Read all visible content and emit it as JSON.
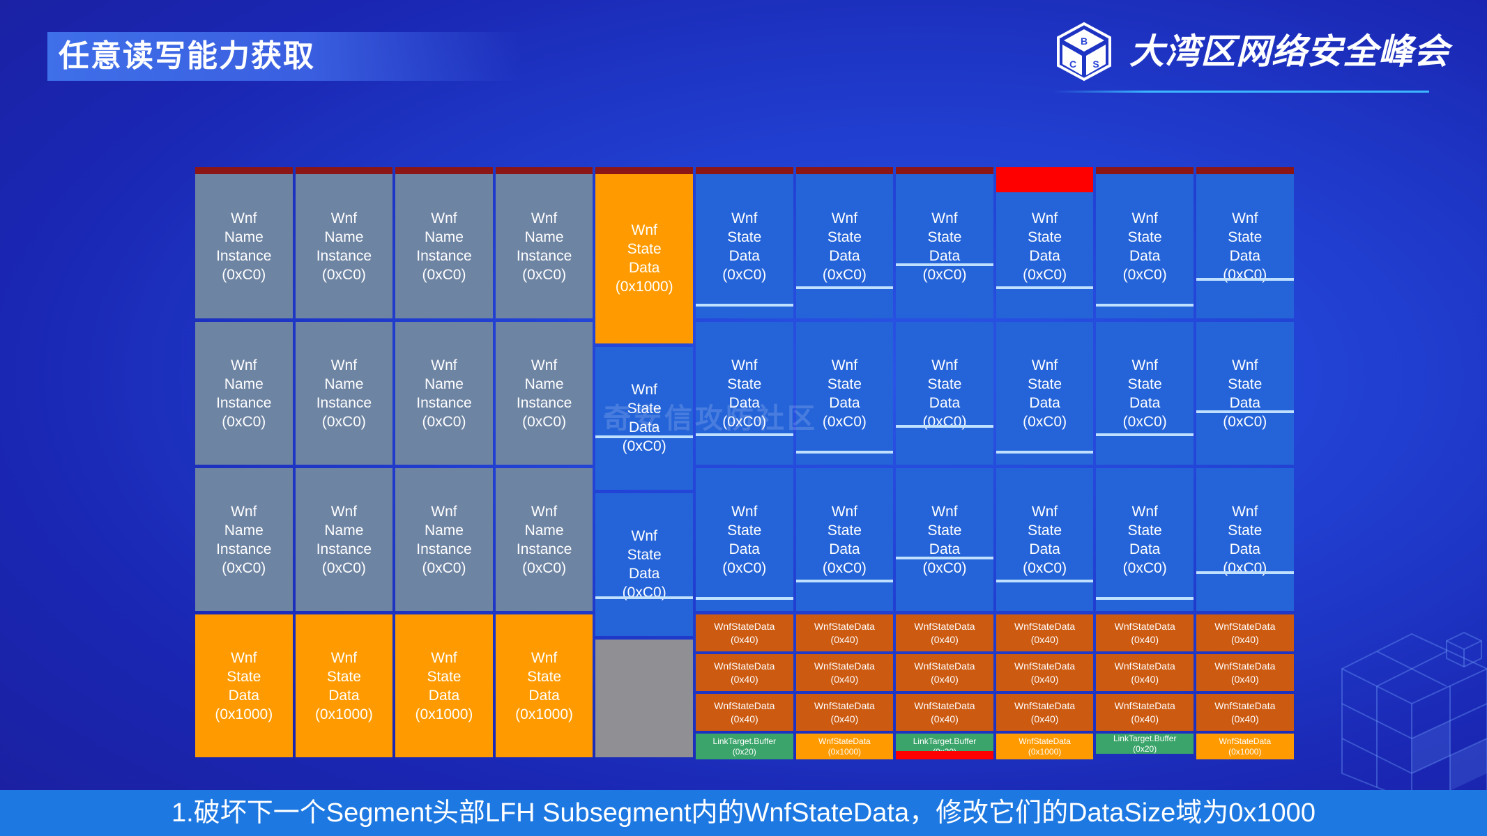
{
  "header": {
    "title": "任意读写能力获取",
    "brand": "大湾区网络安全峰会",
    "logo_letters": [
      "B",
      "C",
      "S"
    ]
  },
  "watermark": "奇安信攻防社区",
  "diagram": {
    "columns": 11,
    "cells": [
      {
        "col": 0,
        "r0": 0,
        "r1": 1,
        "kind": "grey",
        "label": "Wnf\nName\nInstance\n(0xC0)"
      },
      {
        "col": 0,
        "r0": 1,
        "r1": 2,
        "kind": "grey",
        "label": "Wnf\nName\nInstance\n(0xC0)"
      },
      {
        "col": 0,
        "r0": 2,
        "r1": 3,
        "kind": "grey",
        "label": "Wnf\nName\nInstance\n(0xC0)"
      },
      {
        "col": 0,
        "r0": 3,
        "r1": 4,
        "kind": "orange",
        "label": "Wnf\nState\nData\n(0x1000)"
      },
      {
        "col": 1,
        "r0": 0,
        "r1": 1,
        "kind": "grey",
        "label": "Wnf\nName\nInstance\n(0xC0)"
      },
      {
        "col": 1,
        "r0": 1,
        "r1": 2,
        "kind": "grey",
        "label": "Wnf\nName\nInstance\n(0xC0)"
      },
      {
        "col": 1,
        "r0": 2,
        "r1": 3,
        "kind": "grey",
        "label": "Wnf\nName\nInstance\n(0xC0)"
      },
      {
        "col": 1,
        "r0": 3,
        "r1": 4,
        "kind": "orange",
        "label": "Wnf\nState\nData\n(0x1000)"
      },
      {
        "col": 2,
        "r0": 0,
        "r1": 1,
        "kind": "grey",
        "label": "Wnf\nName\nInstance\n(0xC0)"
      },
      {
        "col": 2,
        "r0": 1,
        "r1": 2,
        "kind": "grey",
        "label": "Wnf\nName\nInstance\n(0xC0)"
      },
      {
        "col": 2,
        "r0": 2,
        "r1": 3,
        "kind": "grey",
        "label": "Wnf\nName\nInstance\n(0xC0)"
      },
      {
        "col": 2,
        "r0": 3,
        "r1": 4,
        "kind": "orange",
        "label": "Wnf\nState\nData\n(0x1000)"
      },
      {
        "col": 3,
        "r0": 0,
        "r1": 1,
        "kind": "grey",
        "label": "Wnf\nName\nInstance\n(0xC0)"
      },
      {
        "col": 3,
        "r0": 1,
        "r1": 2,
        "kind": "grey",
        "label": "Wnf\nName\nInstance\n(0xC0)"
      },
      {
        "col": 3,
        "r0": 2,
        "r1": 3,
        "kind": "grey",
        "label": "Wnf\nName\nInstance\n(0xC0)"
      },
      {
        "col": 3,
        "r0": 3,
        "r1": 4,
        "kind": "orange",
        "label": "Wnf\nState\nData\n(0x1000)"
      },
      {
        "col": 4,
        "r0": 0,
        "r1": 1.17,
        "kind": "orange",
        "label": "Wnf\nState\nData\n(0x1000)"
      },
      {
        "col": 4,
        "r0": 1.17,
        "r1": 2.17,
        "kind": "blue",
        "label": "Wnf\nState\nData\n(0xC0)"
      },
      {
        "col": 4,
        "r0": 2.17,
        "r1": 3.17,
        "kind": "blue",
        "label": "Wnf\nState\nData\n(0xC0)"
      },
      {
        "col": 4,
        "r0": 3.17,
        "r1": 4,
        "kind": "grey-light",
        "label": ""
      },
      {
        "col": 5,
        "r0": 0,
        "r1": 1,
        "kind": "blue",
        "label": "Wnf\nState\nData\n(0xC0)"
      },
      {
        "col": 5,
        "r0": 1,
        "r1": 2,
        "kind": "blue",
        "label": "Wnf\nState\nData\n(0xC0)"
      },
      {
        "col": 5,
        "r0": 2,
        "r1": 3,
        "kind": "blue",
        "label": "Wnf\nState\nData\n(0xC0)"
      },
      {
        "col": 6,
        "r0": 0,
        "r1": 1,
        "kind": "blue",
        "label": "Wnf\nState\nData\n(0xC0)"
      },
      {
        "col": 6,
        "r0": 1,
        "r1": 2,
        "kind": "blue",
        "label": "Wnf\nState\nData\n(0xC0)"
      },
      {
        "col": 6,
        "r0": 2,
        "r1": 3,
        "kind": "blue",
        "label": "Wnf\nState\nData\n(0xC0)"
      },
      {
        "col": 7,
        "r0": 0,
        "r1": 1,
        "kind": "blue",
        "label": "Wnf\nState\nData\n(0xC0)"
      },
      {
        "col": 7,
        "r0": 1,
        "r1": 2,
        "kind": "blue",
        "label": "Wnf\nState\nData\n(0xC0)"
      },
      {
        "col": 7,
        "r0": 2,
        "r1": 3,
        "kind": "blue",
        "label": "Wnf\nState\nData\n(0xC0)"
      },
      {
        "col": 8,
        "r0": 0,
        "r1": 1,
        "kind": "blue",
        "label": "Wnf\nState\nData\n(0xC0)",
        "redtop": true
      },
      {
        "col": 8,
        "r0": 1,
        "r1": 2,
        "kind": "blue",
        "label": "Wnf\nState\nData\n(0xC0)"
      },
      {
        "col": 8,
        "r0": 2,
        "r1": 3,
        "kind": "blue",
        "label": "Wnf\nState\nData\n(0xC0)"
      },
      {
        "col": 9,
        "r0": 0,
        "r1": 1,
        "kind": "blue",
        "label": "Wnf\nState\nData\n(0xC0)"
      },
      {
        "col": 9,
        "r0": 1,
        "r1": 2,
        "kind": "blue",
        "label": "Wnf\nState\nData\n(0xC0)"
      },
      {
        "col": 9,
        "r0": 2,
        "r1": 3,
        "kind": "blue",
        "label": "Wnf\nState\nData\n(0xC0)"
      },
      {
        "col": 10,
        "r0": 0,
        "r1": 1,
        "kind": "blue",
        "label": "Wnf\nState\nData\n(0xC0)"
      },
      {
        "col": 10,
        "r0": 1,
        "r1": 2,
        "kind": "blue",
        "label": "Wnf\nState\nData\n(0xC0)"
      },
      {
        "col": 10,
        "r0": 2,
        "r1": 3,
        "kind": "blue",
        "label": "Wnf\nState\nData\n(0xC0)"
      }
    ],
    "small_rows": [
      {
        "kind": "brown",
        "label": "WnfStateData\n(0x40)"
      },
      {
        "kind": "brown",
        "label": "WnfStateData\n(0x40)"
      },
      {
        "kind": "brown",
        "label": "WnfStateData\n(0x40)"
      }
    ],
    "last_row": [
      {
        "kind": "green",
        "label": "LinkTarget.Buffer\n(0x20)"
      },
      {
        "kind": "orange",
        "label": "WnfStateData\n(0x1000)"
      },
      {
        "kind": "green-red",
        "label": "LinkTarget.Buffer\n(0x20)"
      },
      {
        "kind": "orange",
        "label": "WnfStateData\n(0x1000)"
      },
      {
        "kind": "green",
        "label": "LinkTarget.Buffer\n(0x20)"
      },
      {
        "kind": "orange",
        "label": "WnfStateData\n(0x1000)"
      }
    ],
    "colors": {
      "grey": "#6e84a3",
      "grey-light": "#8f8f94",
      "orange": "#ff9b00",
      "blue": "#2564d8",
      "brown": "#cc5a10",
      "green": "#3aa46a",
      "red": "#ff0000",
      "darkred": "#8c1515"
    }
  },
  "footer": {
    "text": "1.破坏下一个Segment头部LFH Subsegment内的WnfStateData，修改它们的DataSize域为0x1000"
  }
}
